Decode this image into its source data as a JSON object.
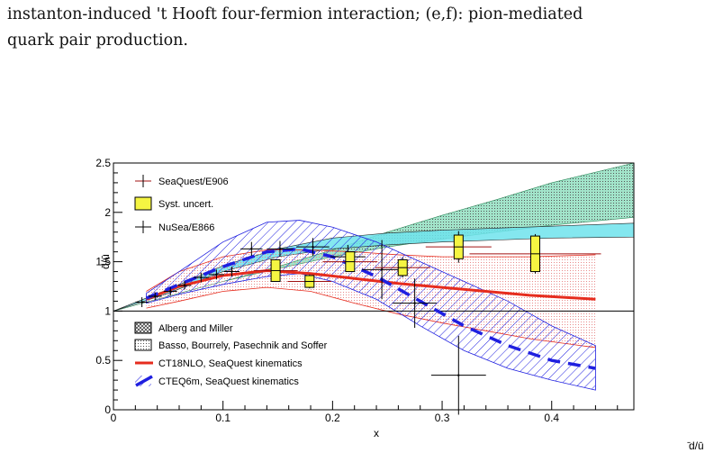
{
  "caption": {
    "line1": "instanton-induced 't Hooft four-fermion interaction; (e,f): pion-mediated",
    "line2": "quark pair production."
  },
  "corner_text": "̄d/ū",
  "chart_data": {
    "type": "line",
    "ylabel": "d̄/ū",
    "xlabel": "x",
    "xlim": [
      0,
      0.475
    ],
    "ylim": [
      0,
      2.5
    ],
    "x_ticks": [
      "0",
      "0.1",
      "0.2",
      "0.3",
      "0.4"
    ],
    "y_ticks": [
      "0",
      "0.5",
      "1",
      "1.5",
      "2",
      "2.5"
    ],
    "grid": false,
    "legend_top": [
      "SeaQuest/E906",
      "Syst. uncert.",
      "NuSea/E866"
    ],
    "legend_bottom": [
      "Alberg and Miller",
      "Basso, Bourrely, Pasechnik and Soffer",
      "CT18NLO, SeaQuest kinematics",
      "CTEQ6m, SeaQuest kinematics"
    ],
    "colors": {
      "seaquest": "#a01010",
      "syst_box": "#f5f542",
      "nusea": "#000000",
      "ct18": "#e62c1e",
      "cteq6m": "#1f1fe0",
      "basso_fill": "#7ad9b4",
      "alberg_fill": "#6fe3ec",
      "ct18_band": "#f2a0a0"
    },
    "seaquest": {
      "name": "SeaQuest/E906",
      "points": [
        {
          "x": 0.148,
          "y": 1.41,
          "xerr": 0.02,
          "yerr": 0.08,
          "syst": 0.11
        },
        {
          "x": 0.179,
          "y": 1.3,
          "xerr": 0.02,
          "yerr": 0.07,
          "syst": 0.06
        },
        {
          "x": 0.216,
          "y": 1.5,
          "xerr": 0.025,
          "yerr": 0.09,
          "syst": 0.1
        },
        {
          "x": 0.264,
          "y": 1.44,
          "xerr": 0.025,
          "yerr": 0.1,
          "syst": 0.08
        },
        {
          "x": 0.315,
          "y": 1.65,
          "xerr": 0.03,
          "yerr": 0.16,
          "syst": 0.12
        },
        {
          "x": 0.385,
          "y": 1.58,
          "xerr": 0.06,
          "yerr": 0.2,
          "syst": 0.18
        }
      ]
    },
    "nusea": {
      "name": "NuSea/E866",
      "points": [
        {
          "x": 0.026,
          "y": 1.09,
          "xerr": 0.006,
          "yerr": 0.05
        },
        {
          "x": 0.038,
          "y": 1.15,
          "xerr": 0.006,
          "yerr": 0.04
        },
        {
          "x": 0.052,
          "y": 1.2,
          "xerr": 0.006,
          "yerr": 0.04
        },
        {
          "x": 0.065,
          "y": 1.26,
          "xerr": 0.006,
          "yerr": 0.04
        },
        {
          "x": 0.08,
          "y": 1.34,
          "xerr": 0.007,
          "yerr": 0.05
        },
        {
          "x": 0.094,
          "y": 1.37,
          "xerr": 0.007,
          "yerr": 0.05
        },
        {
          "x": 0.108,
          "y": 1.4,
          "xerr": 0.007,
          "yerr": 0.05
        },
        {
          "x": 0.126,
          "y": 1.63,
          "xerr": 0.01,
          "yerr": 0.07
        },
        {
          "x": 0.152,
          "y": 1.63,
          "xerr": 0.012,
          "yerr": 0.08
        },
        {
          "x": 0.182,
          "y": 1.65,
          "xerr": 0.015,
          "yerr": 0.09
        },
        {
          "x": 0.214,
          "y": 1.55,
          "xerr": 0.016,
          "yerr": 0.12
        },
        {
          "x": 0.245,
          "y": 1.42,
          "xerr": 0.018,
          "yerr": 0.3
        },
        {
          "x": 0.275,
          "y": 1.08,
          "xerr": 0.02,
          "yerr": 0.25
        },
        {
          "x": 0.315,
          "y": 0.35,
          "xerr": 0.025,
          "yerr": 0.4
        }
      ]
    },
    "ct18nlo": {
      "name": "CT18NLO, SeaQuest kinematics",
      "x": [
        0.03,
        0.06,
        0.1,
        0.14,
        0.18,
        0.22,
        0.26,
        0.3,
        0.34,
        0.38,
        0.44
      ],
      "y": [
        1.12,
        1.25,
        1.36,
        1.41,
        1.38,
        1.33,
        1.28,
        1.24,
        1.2,
        1.16,
        1.12
      ],
      "band_upper": [
        1.2,
        1.4,
        1.55,
        1.62,
        1.62,
        1.6,
        1.57,
        1.55,
        1.55,
        1.55,
        1.57
      ],
      "band_lower": [
        1.03,
        1.1,
        1.2,
        1.24,
        1.2,
        1.08,
        0.97,
        0.88,
        0.8,
        0.72,
        0.63
      ]
    },
    "cteq6m": {
      "name": "CTEQ6m, SeaQuest kinematics",
      "x": [
        0.03,
        0.06,
        0.1,
        0.14,
        0.17,
        0.2,
        0.24,
        0.28,
        0.32,
        0.36,
        0.4,
        0.44
      ],
      "y": [
        1.13,
        1.27,
        1.45,
        1.6,
        1.63,
        1.55,
        1.35,
        1.1,
        0.85,
        0.65,
        0.5,
        0.42
      ],
      "band_upper": [
        1.18,
        1.4,
        1.7,
        1.9,
        1.92,
        1.85,
        1.7,
        1.5,
        1.3,
        1.1,
        0.85,
        0.65
      ],
      "band_lower": [
        1.08,
        1.17,
        1.27,
        1.35,
        1.38,
        1.3,
        1.12,
        0.85,
        0.6,
        0.42,
        0.3,
        0.2
      ]
    },
    "alberg_miller": {
      "name": "Alberg and Miller",
      "x": [
        0,
        0.05,
        0.1,
        0.15,
        0.2,
        0.25,
        0.3,
        0.35,
        0.4,
        0.475
      ],
      "upper": [
        1.0,
        1.22,
        1.46,
        1.63,
        1.74,
        1.79,
        1.82,
        1.84,
        1.86,
        1.89
      ],
      "lower": [
        1.0,
        1.18,
        1.4,
        1.55,
        1.63,
        1.67,
        1.7,
        1.72,
        1.74,
        1.75
      ]
    },
    "basso": {
      "name": "Basso, Bourrely, Pasechnik and Soffer",
      "x": [
        0,
        0.05,
        0.1,
        0.15,
        0.2,
        0.25,
        0.3,
        0.35,
        0.4,
        0.475
      ],
      "upper": [
        1.0,
        1.15,
        1.3,
        1.45,
        1.62,
        1.8,
        1.97,
        2.13,
        2.3,
        2.5
      ],
      "lower": [
        1.0,
        1.15,
        1.3,
        1.43,
        1.55,
        1.65,
        1.73,
        1.8,
        1.87,
        1.95
      ]
    }
  }
}
